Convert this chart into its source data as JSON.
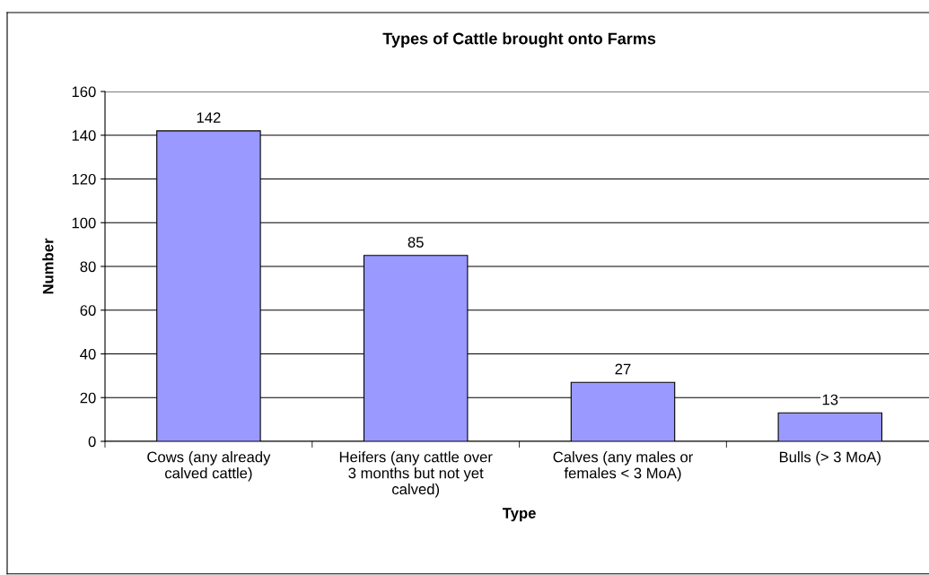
{
  "chart_data": {
    "type": "bar",
    "title": "Types of Cattle brought onto Farms",
    "xlabel": "Type",
    "ylabel": "Number",
    "categories": [
      "Cows (any already\ncalved cattle)",
      "Heifers (any cattle over\n3 months but not yet\ncalved)",
      "Calves (any males or\nfemales < 3 MoA)",
      "Bulls (> 3 MoA)"
    ],
    "values": [
      142,
      85,
      27,
      13
    ],
    "color": "#9999ff",
    "data_labels": true,
    "ylim": [
      0,
      160
    ],
    "yticks": [
      0,
      20,
      40,
      60,
      80,
      100,
      120,
      140,
      160
    ],
    "grid": "y",
    "legend": false
  }
}
